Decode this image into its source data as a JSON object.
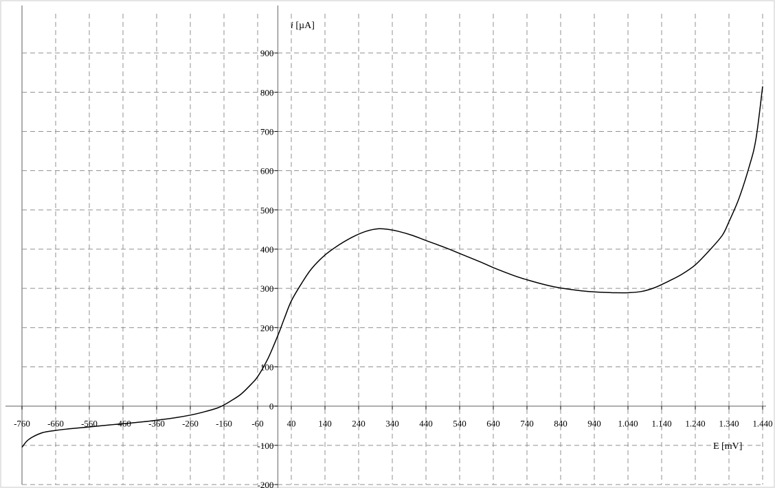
{
  "chart_data": {
    "type": "line",
    "title": "",
    "xlabel": "E [mV]",
    "ylabel_italic": "i",
    "ylabel_unit": " [µA]",
    "xlim": [
      -760,
      1440
    ],
    "ylim": [
      -200,
      1000
    ],
    "grid": true,
    "x_ticks": [
      -760,
      -660,
      -560,
      -460,
      -360,
      -260,
      -160,
      -60,
      40,
      140,
      240,
      340,
      440,
      540,
      640,
      740,
      840,
      940,
      1040,
      1140,
      1240,
      1340,
      1440
    ],
    "x_tick_labels": [
      "-760",
      "-660",
      "-560",
      "-460",
      "-360",
      "-260",
      "-160",
      "-60",
      "40",
      "140",
      "240",
      "340",
      "440",
      "540",
      "640",
      "740",
      "840",
      "940",
      "1.040",
      "1.140",
      "1.240",
      "1.340",
      "1.440"
    ],
    "y_ticks": [
      -200,
      -100,
      0,
      100,
      200,
      300,
      400,
      500,
      600,
      700,
      800,
      900
    ],
    "y_tick_labels": [
      "-200",
      "-100",
      "0",
      "100",
      "200",
      "300",
      "400",
      "500",
      "600",
      "700",
      "800",
      "900"
    ],
    "series": [
      {
        "x": [
          -760,
          -740,
          -700,
          -660,
          -620,
          -560,
          -500,
          -460,
          -400,
          -360,
          -300,
          -260,
          -220,
          -180,
          -160,
          -140,
          -110,
          -80,
          -60,
          -30,
          0,
          20,
          40,
          70,
          100,
          140,
          180,
          220,
          260,
          300,
          330,
          360,
          400,
          440,
          500,
          540,
          600,
          640,
          700,
          740,
          800,
          840,
          900,
          940,
          1000,
          1040,
          1080,
          1120,
          1160,
          1200,
          1240,
          1280,
          1320,
          1340,
          1370,
          1400,
          1420,
          1440
        ],
        "y": [
          -105,
          -85,
          -68,
          -62,
          -58,
          -53,
          -48,
          -45,
          -40,
          -36,
          -29,
          -23,
          -15,
          -5,
          3,
          13,
          30,
          55,
          75,
          120,
          180,
          225,
          268,
          312,
          350,
          385,
          410,
          430,
          445,
          452,
          450,
          445,
          435,
          422,
          403,
          389,
          368,
          353,
          333,
          322,
          308,
          301,
          294,
          291,
          289,
          289,
          292,
          302,
          318,
          336,
          360,
          395,
          435,
          470,
          530,
          610,
          680,
          815
        ]
      }
    ]
  }
}
